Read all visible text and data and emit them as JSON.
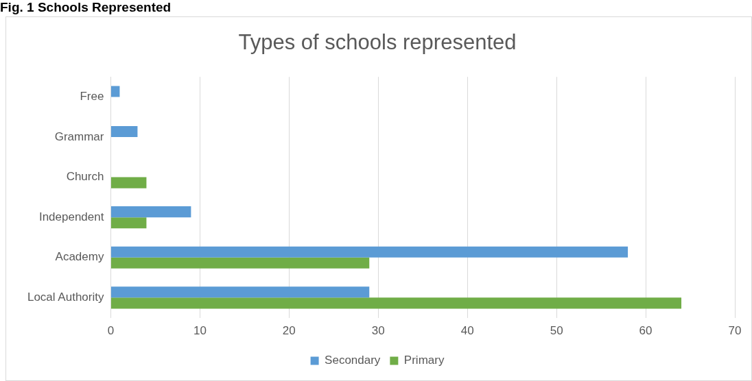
{
  "chart_data": {
    "type": "bar",
    "orientation": "horizontal",
    "title": "Types of schools represented",
    "annotations": [
      "Fig. 1 Schools Represented"
    ],
    "categories": [
      "Free",
      "Grammar",
      "Church",
      "Independent",
      "Academy",
      "Local Authority"
    ],
    "series": [
      {
        "name": "Secondary",
        "color": "#5b9bd5",
        "values": [
          1,
          3,
          null,
          9,
          58,
          29
        ]
      },
      {
        "name": "Primary",
        "color": "#70ad47",
        "values": [
          null,
          null,
          4,
          4,
          29,
          64
        ]
      }
    ],
    "xlim": [
      0,
      70
    ],
    "xticks": [
      0,
      10,
      20,
      30,
      40,
      50,
      60,
      70
    ],
    "grid": "x",
    "legend": "bottom"
  }
}
